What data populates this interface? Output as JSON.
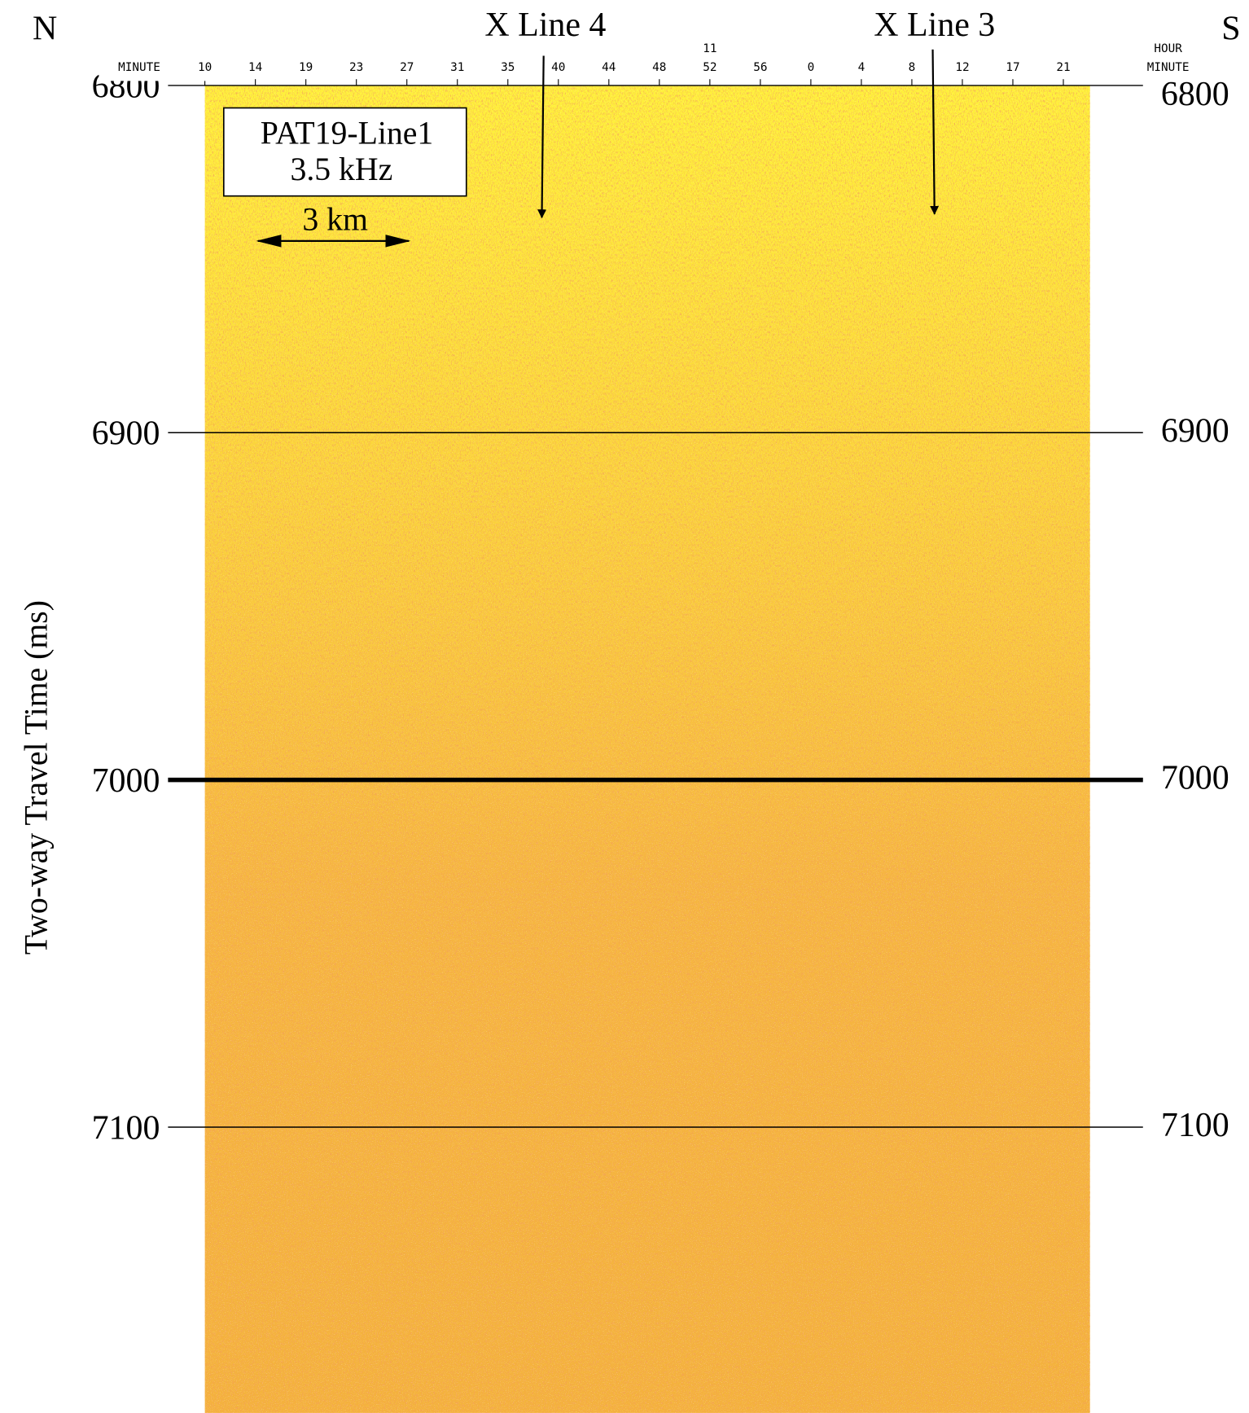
{
  "labels": {
    "north": "N",
    "south": "S",
    "crossing_1": "X Line 4",
    "crossing_2": "X Line 3",
    "box_title": "PAT19-Line1",
    "box_subtitle": "3.5 kHz",
    "scale": "3 km"
  },
  "y_axis": {
    "label": "Two-way Travel Time (ms)",
    "ticks": [
      6800,
      6900,
      7000,
      7100
    ],
    "bold_tick": 7000
  },
  "time_axis": {
    "left_label": "MINUTE",
    "hour": "11",
    "right_labels": [
      "HOUR",
      "MINUTE"
    ],
    "minutes": [
      "10",
      "14",
      "19",
      "23",
      "27",
      "31",
      "35",
      "40",
      "44",
      "48",
      "52",
      "56",
      "0",
      "4",
      "8",
      "12",
      "17",
      "21"
    ]
  }
}
